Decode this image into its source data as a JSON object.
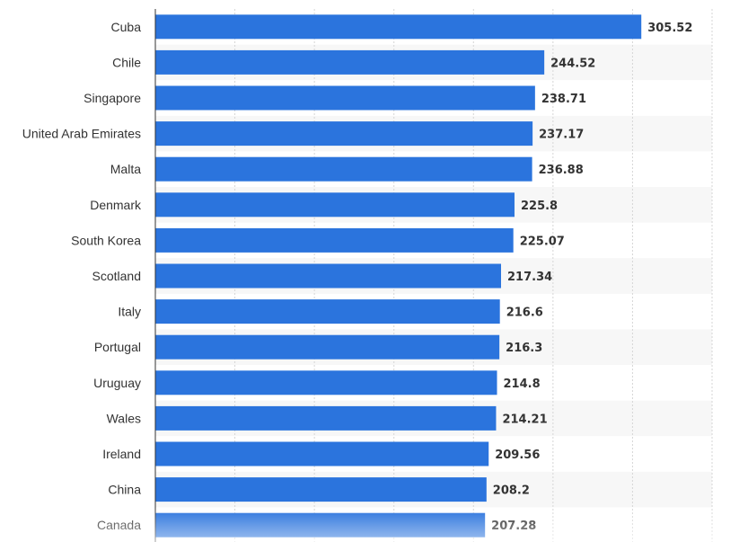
{
  "chart_data": {
    "type": "bar",
    "orientation": "horizontal",
    "categories": [
      "Cuba",
      "Chile",
      "Singapore",
      "United Arab Emirates",
      "Malta",
      "Denmark",
      "South Korea",
      "Scotland",
      "Italy",
      "Portugal",
      "Uruguay",
      "Wales",
      "Ireland",
      "China",
      "Canada"
    ],
    "values": [
      305.52,
      244.52,
      238.71,
      237.17,
      236.88,
      225.8,
      225.07,
      217.34,
      216.6,
      216.3,
      214.8,
      214.21,
      209.56,
      208.2,
      207.28
    ],
    "value_labels": [
      "305.52",
      "244.52",
      "238.71",
      "237.17",
      "236.88",
      "225.8",
      "225.07",
      "217.34",
      "216.6",
      "216.3",
      "214.8",
      "214.21",
      "209.56",
      "208.2",
      "207.28"
    ],
    "title": "",
    "xlabel": "",
    "ylabel": "",
    "xlim": [
      0,
      350
    ],
    "grid": true,
    "colors": {
      "bar": "#2b74dd",
      "grid": "#d6d6d6",
      "band": "#f7f7f7",
      "axis": "#333333"
    }
  }
}
